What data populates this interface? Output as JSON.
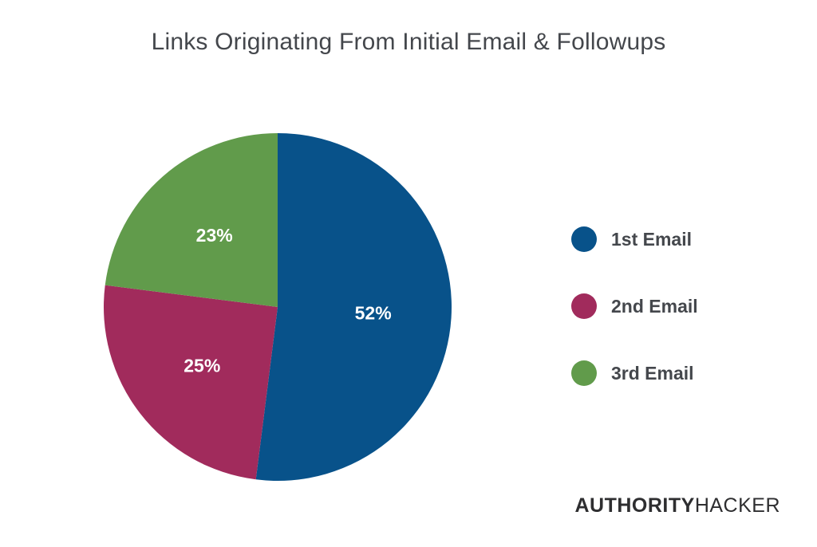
{
  "chart_data": {
    "type": "pie",
    "title": "Links Originating From Initial Email & Followups",
    "slices": [
      {
        "label": "1st Email",
        "value": 52,
        "display": "52%",
        "color": "#08528a"
      },
      {
        "label": "2nd Email",
        "value": 25,
        "display": "25%",
        "color": "#a12b5c"
      },
      {
        "label": "3rd Email",
        "value": 23,
        "display": "23%",
        "color": "#619b4b"
      }
    ],
    "legend_position": "right"
  },
  "logo": {
    "part1": "AUTHORITY",
    "part2": "HACKER"
  }
}
